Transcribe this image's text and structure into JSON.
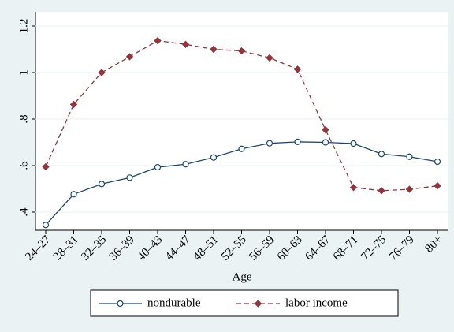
{
  "chart_data": {
    "type": "line",
    "x_label": "Age",
    "categories": [
      "24–27",
      "28–31",
      "32–35",
      "36–39",
      "40–43",
      "44–47",
      "48–51",
      "52–55",
      "56–59",
      "60–63",
      "64–67",
      "68–71",
      "72–75",
      "76–79",
      "80+"
    ],
    "series": [
      {
        "name": "nondurable",
        "color": "#1a476f",
        "marker": "circle",
        "line_style": "solid",
        "values": [
          0.345,
          0.477,
          0.521,
          0.548,
          0.593,
          0.606,
          0.635,
          0.672,
          0.696,
          0.702,
          0.7,
          0.695,
          0.65,
          0.638,
          0.617
        ]
      },
      {
        "name": "labor income",
        "color": "#90353b",
        "marker": "diamond",
        "line_style": "dash",
        "values": [
          0.595,
          0.863,
          1.0,
          1.068,
          1.137,
          1.121,
          1.1,
          1.093,
          1.063,
          1.014,
          0.754,
          0.506,
          0.492,
          0.498,
          0.513
        ]
      }
    ],
    "ylim": [
      0.322,
      1.261
    ],
    "yticks": [
      {
        "value": 0.4,
        "label": ".4"
      },
      {
        "value": 0.6,
        "label": ".6"
      },
      {
        "value": 0.8,
        "label": ".8"
      },
      1,
      1.2
    ],
    "grid": true
  }
}
